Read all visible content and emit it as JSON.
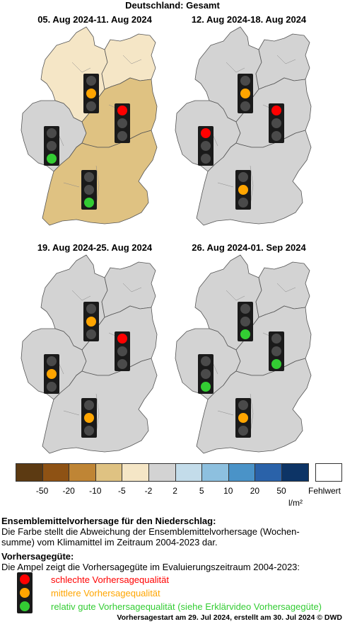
{
  "title": "Deutschland: Gesamt",
  "panels": [
    {
      "period": "05. Aug 2024-11. Aug 2024",
      "regions": {
        "northwest": "#f5e6c6",
        "northeast": "#f5e6c6",
        "west": "#d3d3d3",
        "east": "#dfc282",
        "south": "#dfc282"
      },
      "lights": {
        "north": "orange",
        "west": "green",
        "east": "red",
        "south": "green"
      }
    },
    {
      "period": "12. Aug 2024-18. Aug 2024",
      "regions": {
        "northwest": "#d3d3d3",
        "northeast": "#d3d3d3",
        "west": "#d3d3d3",
        "east": "#d3d3d3",
        "south": "#d3d3d3"
      },
      "lights": {
        "north": "orange",
        "west": "red",
        "east": "red",
        "south": "orange"
      }
    },
    {
      "period": "19. Aug 2024-25. Aug 2024",
      "regions": {
        "northwest": "#d3d3d3",
        "northeast": "#d3d3d3",
        "west": "#d3d3d3",
        "east": "#d3d3d3",
        "south": "#d3d3d3"
      },
      "lights": {
        "north": "orange",
        "west": "orange",
        "east": "red",
        "south": "orange"
      }
    },
    {
      "period": "26. Aug 2024-01. Sep 2024",
      "regions": {
        "northwest": "#d3d3d3",
        "northeast": "#d3d3d3",
        "west": "#d3d3d3",
        "east": "#d3d3d3",
        "south": "#d3d3d3"
      },
      "lights": {
        "north": "green",
        "west": "green",
        "east": "green",
        "south": "orange"
      }
    }
  ],
  "legend": {
    "colors": [
      "#5c3a12",
      "#8e5214",
      "#bf8535",
      "#dfc282",
      "#f5e6c6",
      "#d3d3d3",
      "#c3dcea",
      "#8dc0df",
      "#4a93c8",
      "#2a62a9",
      "#0d3466"
    ],
    "ticks": [
      "-50",
      "-20",
      "-10",
      "-5",
      "-2",
      "2",
      "5",
      "10",
      "20",
      "50"
    ],
    "missing_label": "Fehlwert",
    "unit": "l/m²"
  },
  "light_colors": {
    "red": "#ff0000",
    "orange": "#ffa500",
    "green": "#33cc33",
    "off": "#4a4a4a"
  },
  "text": {
    "ens_heading": "Ensemblemittelvorhersage für den Niederschlag:",
    "ens_line1": "Die Farbe stellt die Abweichung der Ensemblemittelvorhersage (Wochen-",
    "ens_line2": "summe) vom Klimamittel im Zeitraum 2004-2023 dar.",
    "quality_heading": "Vorhersagegüte:",
    "quality_line": "Die Ampel zeigt die Vorhersagegüte im Evaluierungszeitraum 2004-2023:",
    "bad": "schlechte Vorhersagequalität",
    "medium": "mittlere Vorhersagequalität",
    "good": "relativ gute Vorhersagequalität (siehe Erklärvideo Vorhersagegüte)",
    "footer": "Vorhersagestart am 29. Jul 2024, erstellt am 30. Jul 2024 © DWD"
  }
}
